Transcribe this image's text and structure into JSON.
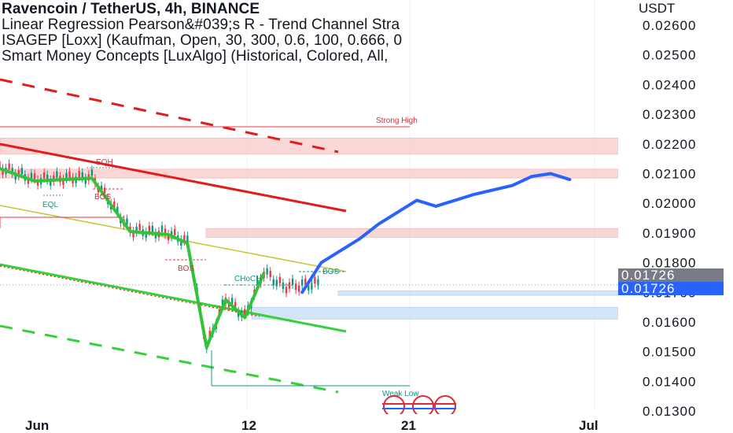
{
  "header": {
    "title": "Ravencoin / TetherUS, 4h, BINANCE",
    "indicator_1": "Linear Regression Pearson&#039;s R - Trend Channel Stra",
    "indicator_2": "ISAGEP [Loxx] (Kaufman, Open, 30, 300, 0.6, 100, 0.666, 0",
    "indicator_3": "Smart Money Concepts [LuxAlgo] (Historical, Colored, All,"
  },
  "price_axis": {
    "currency": "USDT",
    "ticks": [
      "0.02600",
      "0.02500",
      "0.02400",
      "0.02300",
      "0.02200",
      "0.02100",
      "0.02000",
      "0.01900",
      "0.01800",
      "0.01700",
      "0.01600",
      "0.01500",
      "0.01400",
      "0.01300"
    ],
    "price_label_gray": "0.01726",
    "price_label_blue": "0.01726",
    "last_price_color": "#2962ff",
    "gray_label_color": "#787b86"
  },
  "time_axis": {
    "ticks": [
      "Jun",
      "12",
      "21",
      "Jul"
    ]
  },
  "annotations": {
    "strong_high": "Strong High",
    "weak_low": "Weak Low",
    "eqh": "EQH",
    "eql": "EQL",
    "bos_1": "BOS",
    "bos_2": "BOS",
    "choch": "CHoCH",
    "bos_3": "BOS"
  },
  "colors": {
    "bearish_zone": "#f7c9c9",
    "bullish_zone": "#c7dcf7",
    "regression_red": "#e31b1b",
    "regression_green": "#36d13a",
    "projection_blue": "#2962ff",
    "candle_up": "#089981",
    "candle_down": "#f23645",
    "isagep_green": "#31c33a",
    "label_teal": "#089981",
    "label_red": "#e02a34"
  },
  "chart_data": {
    "type": "candlestick",
    "symbol": "RVN/USDT",
    "timeframe": "4h",
    "ylim": [
      0.013,
      0.0265
    ],
    "close_approx": [
      {
        "date": "May 29",
        "price": 0.0215
      },
      {
        "date": "Jun 1",
        "price": 0.0208
      },
      {
        "date": "Jun 4",
        "price": 0.0209
      },
      {
        "date": "Jun 6",
        "price": 0.0191
      },
      {
        "date": "Jun 8",
        "price": 0.019
      },
      {
        "date": "Jun 9",
        "price": 0.0187
      },
      {
        "date": "Jun 10",
        "price": 0.0152
      },
      {
        "date": "Jun 11",
        "price": 0.0168
      },
      {
        "date": "Jun 12",
        "price": 0.0162
      },
      {
        "date": "Jun 13",
        "price": 0.0177
      },
      {
        "date": "Jun 14",
        "price": 0.0172
      },
      {
        "date": "Jun 16",
        "price": 0.0173
      }
    ],
    "projection_path": [
      {
        "date": "Jun 15",
        "price": 0.017
      },
      {
        "date": "Jun 16",
        "price": 0.018
      },
      {
        "date": "Jun 18",
        "price": 0.0188
      },
      {
        "date": "Jun 19",
        "price": 0.0193
      },
      {
        "date": "Jun 21",
        "price": 0.0201
      },
      {
        "date": "Jun 22",
        "price": 0.0199
      },
      {
        "date": "Jun 24",
        "price": 0.0203
      },
      {
        "date": "Jun 26",
        "price": 0.0206
      },
      {
        "date": "Jun 27",
        "price": 0.0209
      },
      {
        "date": "Jun 28",
        "price": 0.021
      },
      {
        "date": "Jun 29",
        "price": 0.0208
      }
    ],
    "zones": [
      {
        "kind": "supply",
        "price_low": 0.02165,
        "price_high": 0.0222
      },
      {
        "kind": "supply",
        "price_low": 0.02085,
        "price_high": 0.02115
      },
      {
        "kind": "supply",
        "price_low": 0.01885,
        "price_high": 0.01915
      },
      {
        "kind": "demand",
        "price_low": 0.0169,
        "price_high": 0.01705
      },
      {
        "kind": "demand",
        "price_low": 0.0161,
        "price_high": 0.0165
      }
    ],
    "levels": {
      "strong_high": 0.02255,
      "weak_low": 0.01395
    }
  }
}
